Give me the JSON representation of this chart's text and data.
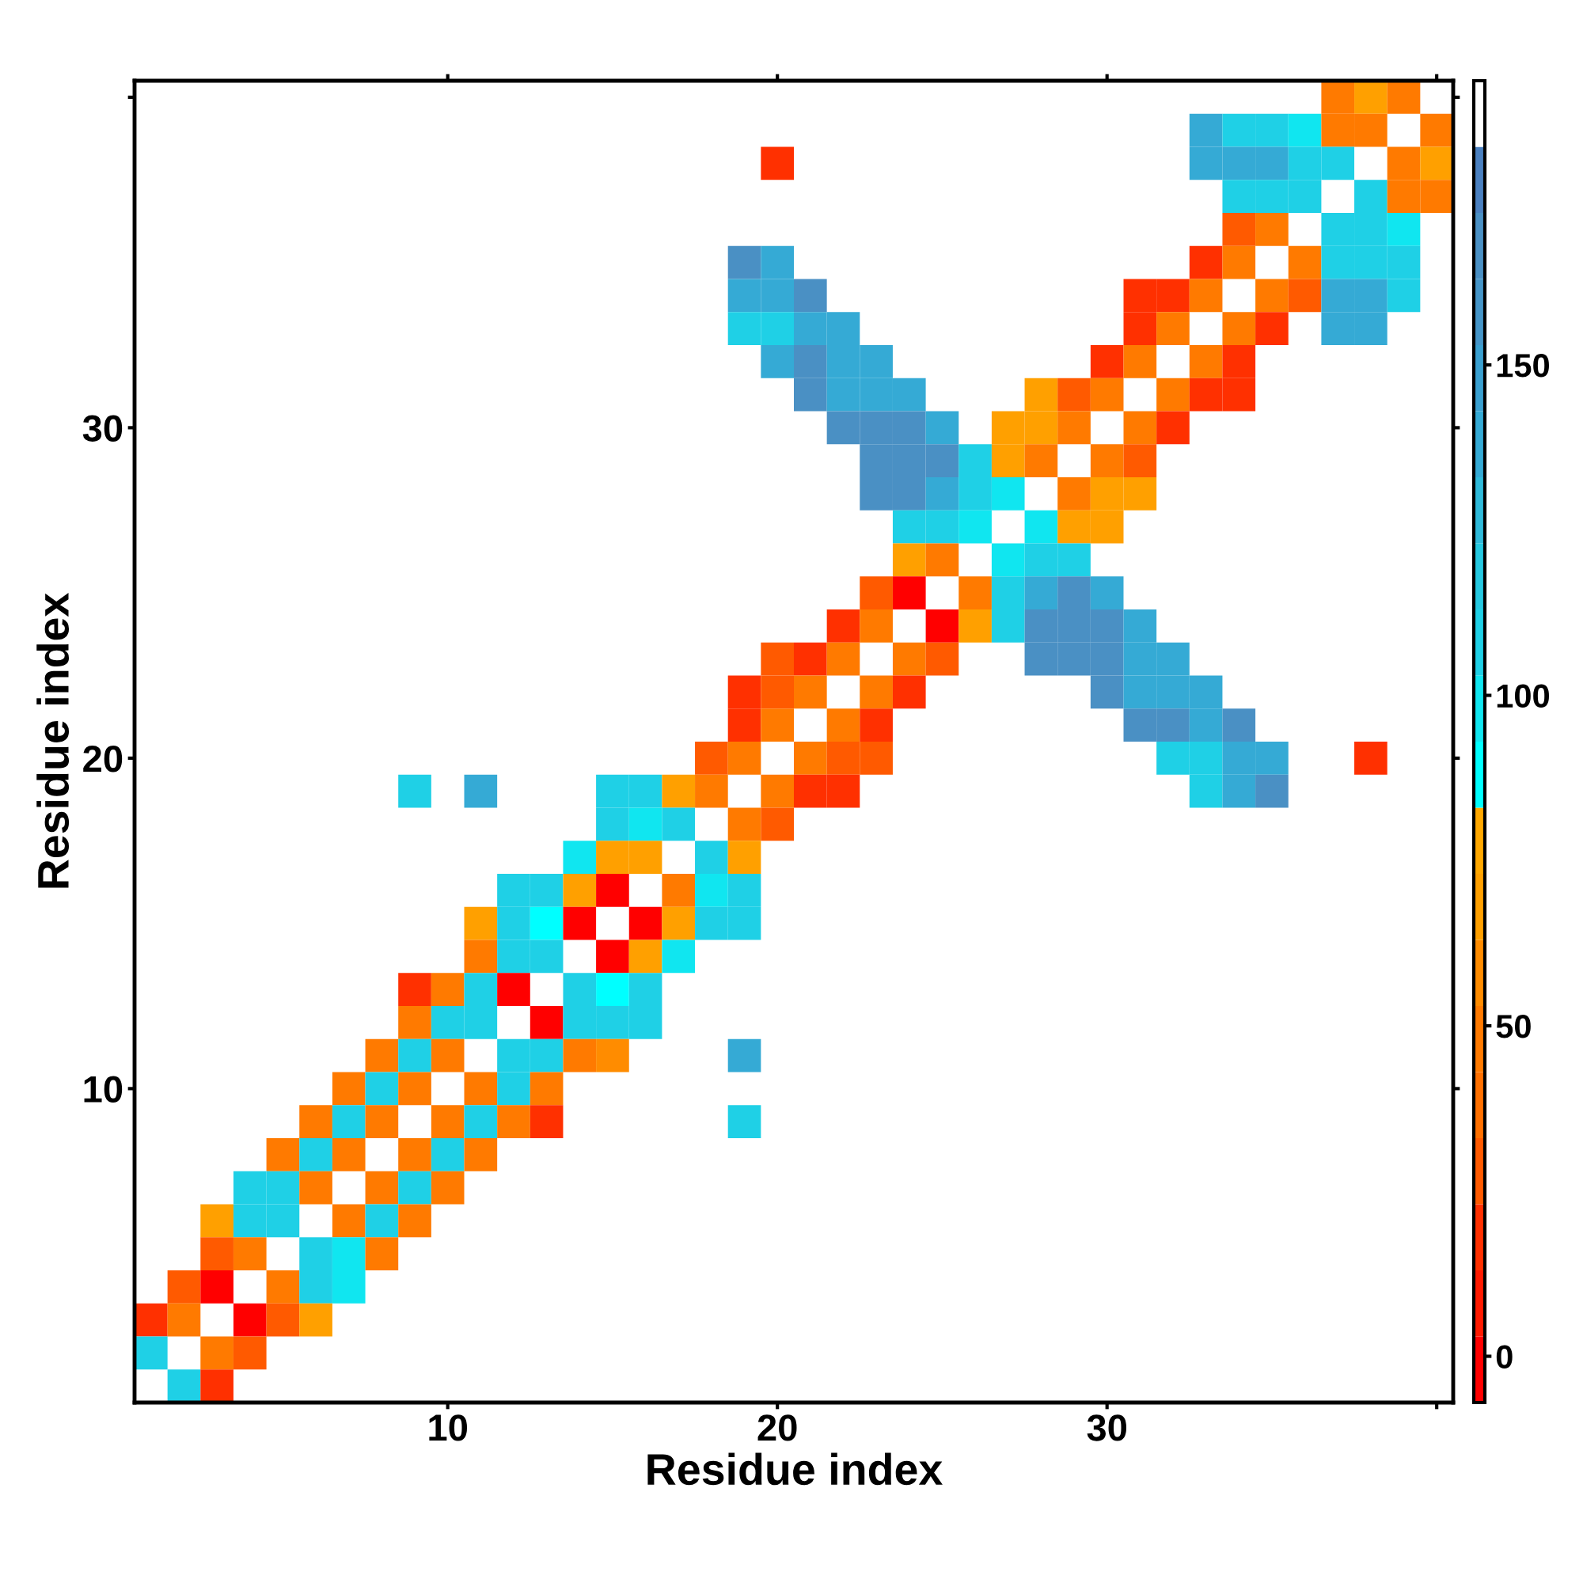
{
  "chart_data": {
    "type": "heatmap",
    "xlabel": "Residue index",
    "ylabel": "Residue index",
    "xlim": [
      0.5,
      40.5
    ],
    "ylim": [
      0.5,
      40.5
    ],
    "xticks": [
      10,
      20,
      30,
      {
        "value": 40,
        "label": null
      }
    ],
    "yticks": [
      10,
      20,
      30,
      {
        "value": 40,
        "label": null
      }
    ],
    "clim": [
      -7,
      193
    ],
    "cticks": [
      0,
      50,
      100,
      150
    ],
    "colors": [
      "#ff0000",
      "#ff1a00",
      "#ff3000",
      "#ff5a00",
      "#ff7000",
      "#ff7a00",
      "#ff8c00",
      "#ffa000",
      "#ffa800",
      "#00ffff",
      "#10e6f0",
      "#1fd0e6",
      "#25c8e0",
      "#2fbada",
      "#35aad5",
      "#3aa0d0",
      "#4595c8",
      "#4a90c4",
      "#4a80c0",
      "#ffffff"
    ],
    "cells": [
      [
        null,
        null,
        null,
        null,
        null,
        null,
        null,
        null,
        null,
        null,
        null,
        null,
        null,
        null,
        null,
        null,
        null,
        null,
        null,
        null,
        null,
        null,
        null,
        null,
        null,
        null,
        null,
        null,
        null,
        null,
        null,
        null,
        null,
        null,
        null,
        null,
        48,
        68,
        48,
        null
      ],
      [
        null,
        null,
        null,
        null,
        null,
        null,
        null,
        null,
        null,
        null,
        null,
        null,
        null,
        null,
        null,
        null,
        null,
        null,
        null,
        null,
        null,
        null,
        null,
        null,
        null,
        null,
        null,
        null,
        null,
        null,
        null,
        null,
        138,
        108,
        108,
        98,
        48,
        48,
        null,
        48
      ],
      [
        null,
        null,
        null,
        null,
        null,
        null,
        null,
        null,
        null,
        null,
        null,
        null,
        null,
        null,
        null,
        null,
        null,
        null,
        null,
        18,
        null,
        null,
        null,
        null,
        null,
        null,
        null,
        null,
        null,
        null,
        null,
        null,
        138,
        138,
        138,
        108,
        108,
        null,
        48,
        68
      ],
      [
        null,
        null,
        null,
        null,
        null,
        null,
        null,
        null,
        null,
        null,
        null,
        null,
        null,
        null,
        null,
        null,
        null,
        null,
        null,
        null,
        null,
        null,
        null,
        null,
        null,
        null,
        null,
        null,
        null,
        null,
        null,
        null,
        null,
        108,
        108,
        108,
        null,
        108,
        48,
        48
      ],
      [
        null,
        null,
        null,
        null,
        null,
        null,
        null,
        null,
        null,
        null,
        null,
        null,
        null,
        null,
        null,
        null,
        null,
        null,
        null,
        null,
        null,
        null,
        null,
        null,
        null,
        null,
        null,
        null,
        null,
        null,
        null,
        null,
        null,
        28,
        48,
        null,
        108,
        108,
        98,
        null
      ],
      [
        null,
        null,
        null,
        null,
        null,
        null,
        null,
        null,
        null,
        null,
        null,
        null,
        null,
        null,
        null,
        null,
        null,
        null,
        168,
        138,
        null,
        null,
        null,
        null,
        null,
        null,
        null,
        null,
        null,
        null,
        null,
        null,
        18,
        48,
        null,
        48,
        108,
        108,
        108,
        null
      ],
      [
        null,
        null,
        null,
        null,
        null,
        null,
        null,
        null,
        null,
        null,
        null,
        null,
        null,
        null,
        null,
        null,
        null,
        null,
        138,
        138,
        168,
        null,
        null,
        null,
        null,
        null,
        null,
        null,
        null,
        null,
        18,
        18,
        48,
        null,
        48,
        28,
        138,
        138,
        108,
        null
      ],
      [
        null,
        null,
        null,
        null,
        null,
        null,
        null,
        null,
        null,
        null,
        null,
        null,
        null,
        null,
        null,
        null,
        null,
        null,
        108,
        108,
        138,
        138,
        null,
        null,
        null,
        null,
        null,
        null,
        null,
        null,
        18,
        48,
        null,
        48,
        18,
        null,
        138,
        138,
        null,
        null
      ],
      [
        null,
        null,
        null,
        null,
        null,
        null,
        null,
        null,
        null,
        null,
        null,
        null,
        null,
        null,
        null,
        null,
        null,
        null,
        null,
        138,
        168,
        138,
        138,
        null,
        null,
        null,
        null,
        null,
        null,
        18,
        48,
        null,
        48,
        18,
        null,
        null,
        null,
        null,
        null,
        null
      ],
      [
        null,
        null,
        null,
        null,
        null,
        null,
        null,
        null,
        null,
        null,
        null,
        null,
        null,
        null,
        null,
        null,
        null,
        null,
        null,
        null,
        168,
        138,
        138,
        138,
        null,
        null,
        null,
        68,
        28,
        48,
        null,
        48,
        18,
        18,
        null,
        null,
        null,
        null,
        null,
        null
      ],
      [
        null,
        null,
        null,
        null,
        null,
        null,
        null,
        null,
        null,
        null,
        null,
        null,
        null,
        null,
        null,
        null,
        null,
        null,
        null,
        null,
        null,
        168,
        168,
        168,
        138,
        null,
        68,
        68,
        48,
        null,
        48,
        18,
        null,
        null,
        null,
        null,
        null,
        null,
        null,
        null
      ],
      [
        null,
        null,
        null,
        null,
        null,
        null,
        null,
        null,
        null,
        null,
        null,
        null,
        null,
        null,
        null,
        null,
        null,
        null,
        null,
        null,
        null,
        null,
        168,
        168,
        168,
        108,
        68,
        48,
        null,
        48,
        28,
        null,
        null,
        null,
        null,
        null,
        null,
        null,
        null,
        null
      ],
      [
        null,
        null,
        null,
        null,
        null,
        null,
        null,
        null,
        null,
        null,
        null,
        null,
        null,
        null,
        null,
        null,
        null,
        null,
        null,
        null,
        null,
        null,
        168,
        168,
        138,
        108,
        98,
        null,
        48,
        68,
        68,
        null,
        null,
        null,
        null,
        null,
        null,
        null,
        null,
        null
      ],
      [
        null,
        null,
        null,
        null,
        null,
        null,
        null,
        null,
        null,
        null,
        null,
        null,
        null,
        null,
        null,
        null,
        null,
        null,
        null,
        null,
        null,
        null,
        null,
        108,
        108,
        98,
        null,
        98,
        68,
        68,
        null,
        null,
        null,
        null,
        null,
        null,
        null,
        null,
        null,
        null
      ],
      [
        null,
        null,
        null,
        null,
        null,
        null,
        null,
        null,
        null,
        null,
        null,
        null,
        null,
        null,
        null,
        null,
        null,
        null,
        null,
        null,
        null,
        null,
        null,
        68,
        48,
        null,
        98,
        108,
        108,
        null,
        null,
        null,
        null,
        null,
        null,
        null,
        null,
        null,
        null,
        null
      ],
      [
        null,
        null,
        null,
        null,
        null,
        null,
        null,
        null,
        null,
        null,
        null,
        null,
        null,
        null,
        null,
        null,
        null,
        null,
        null,
        null,
        null,
        null,
        28,
        0,
        null,
        48,
        108,
        138,
        168,
        138,
        null,
        null,
        null,
        null,
        null,
        null,
        null,
        null,
        null,
        null
      ],
      [
        null,
        null,
        null,
        null,
        null,
        null,
        null,
        null,
        null,
        null,
        null,
        null,
        null,
        null,
        null,
        null,
        null,
        null,
        null,
        null,
        null,
        18,
        48,
        null,
        0,
        68,
        108,
        168,
        168,
        168,
        138,
        null,
        null,
        null,
        null,
        null,
        null,
        null,
        null,
        null
      ],
      [
        null,
        null,
        null,
        null,
        null,
        null,
        null,
        null,
        null,
        null,
        null,
        null,
        null,
        null,
        null,
        null,
        null,
        null,
        null,
        28,
        18,
        48,
        null,
        48,
        28,
        null,
        null,
        168,
        168,
        168,
        138,
        138,
        null,
        null,
        null,
        null,
        null,
        null,
        null,
        null
      ],
      [
        null,
        null,
        null,
        null,
        null,
        null,
        null,
        null,
        null,
        null,
        null,
        null,
        null,
        null,
        null,
        null,
        null,
        null,
        18,
        28,
        48,
        null,
        48,
        18,
        null,
        null,
        null,
        null,
        null,
        168,
        138,
        138,
        138,
        null,
        null,
        null,
        null,
        null,
        null,
        null
      ],
      [
        null,
        null,
        null,
        null,
        null,
        null,
        null,
        null,
        null,
        null,
        null,
        null,
        null,
        null,
        null,
        null,
        null,
        null,
        18,
        48,
        null,
        48,
        18,
        null,
        null,
        null,
        null,
        null,
        null,
        null,
        168,
        168,
        138,
        168,
        null,
        null,
        null,
        null,
        null,
        null
      ],
      [
        null,
        null,
        null,
        null,
        null,
        null,
        null,
        null,
        null,
        null,
        null,
        null,
        null,
        null,
        null,
        null,
        null,
        28,
        48,
        null,
        48,
        28,
        28,
        null,
        null,
        null,
        null,
        null,
        null,
        null,
        null,
        108,
        108,
        138,
        138,
        null,
        null,
        18,
        null,
        null
      ],
      [
        null,
        null,
        null,
        null,
        null,
        null,
        null,
        null,
        108,
        null,
        138,
        null,
        null,
        null,
        108,
        108,
        68,
        48,
        null,
        48,
        18,
        18,
        null,
        null,
        null,
        null,
        null,
        null,
        null,
        null,
        null,
        null,
        108,
        138,
        168,
        null,
        null,
        null,
        null,
        null
      ],
      [
        null,
        null,
        null,
        null,
        null,
        null,
        null,
        null,
        null,
        null,
        null,
        null,
        null,
        null,
        108,
        98,
        108,
        null,
        48,
        28,
        null,
        null,
        null,
        null,
        null,
        null,
        null,
        null,
        null,
        null,
        null,
        null,
        null,
        null,
        null,
        null,
        null,
        null,
        null,
        null
      ],
      [
        null,
        null,
        null,
        null,
        null,
        null,
        null,
        null,
        null,
        null,
        null,
        null,
        null,
        98,
        68,
        68,
        null,
        108,
        68,
        null,
        null,
        null,
        null,
        null,
        null,
        null,
        null,
        null,
        null,
        null,
        null,
        null,
        null,
        null,
        null,
        null,
        null,
        null,
        null,
        null
      ],
      [
        null,
        null,
        null,
        null,
        null,
        null,
        null,
        null,
        null,
        null,
        null,
        108,
        108,
        68,
        0,
        null,
        48,
        98,
        108,
        null,
        null,
        null,
        null,
        null,
        null,
        null,
        null,
        null,
        null,
        null,
        null,
        null,
        null,
        null,
        null,
        null,
        null,
        null,
        null,
        null
      ],
      [
        null,
        null,
        null,
        null,
        null,
        null,
        null,
        null,
        null,
        null,
        68,
        108,
        88,
        0,
        null,
        0,
        68,
        108,
        108,
        null,
        null,
        null,
        null,
        null,
        null,
        null,
        null,
        null,
        null,
        null,
        null,
        null,
        null,
        null,
        null,
        null,
        null,
        null,
        null,
        null
      ],
      [
        null,
        null,
        null,
        null,
        null,
        null,
        null,
        null,
        null,
        null,
        48,
        108,
        108,
        null,
        0,
        68,
        98,
        null,
        null,
        null,
        null,
        null,
        null,
        null,
        null,
        null,
        null,
        null,
        null,
        null,
        null,
        null,
        null,
        null,
        null,
        null,
        null,
        null,
        null,
        null
      ],
      [
        null,
        null,
        null,
        null,
        null,
        null,
        null,
        null,
        18,
        48,
        108,
        0,
        null,
        108,
        88,
        108,
        null,
        null,
        null,
        null,
        null,
        null,
        null,
        null,
        null,
        null,
        null,
        null,
        null,
        null,
        null,
        null,
        null,
        null,
        null,
        null,
        null,
        null,
        null,
        null
      ],
      [
        null,
        null,
        null,
        null,
        null,
        null,
        null,
        null,
        48,
        108,
        108,
        null,
        0,
        108,
        108,
        108,
        null,
        null,
        null,
        null,
        null,
        null,
        null,
        null,
        null,
        null,
        null,
        null,
        null,
        null,
        null,
        null,
        null,
        null,
        null,
        null,
        null,
        null,
        null,
        null
      ],
      [
        null,
        null,
        null,
        null,
        null,
        null,
        null,
        48,
        108,
        48,
        null,
        108,
        108,
        48,
        58,
        null,
        null,
        null,
        138,
        null,
        null,
        null,
        null,
        null,
        null,
        null,
        null,
        null,
        null,
        null,
        null,
        null,
        null,
        null,
        null,
        null,
        null,
        null,
        null,
        null
      ],
      [
        null,
        null,
        null,
        null,
        null,
        null,
        48,
        108,
        48,
        null,
        48,
        108,
        48,
        null,
        null,
        null,
        null,
        null,
        null,
        null,
        null,
        null,
        null,
        null,
        null,
        null,
        null,
        null,
        null,
        null,
        null,
        null,
        null,
        null,
        null,
        null,
        null,
        null,
        null,
        null
      ],
      [
        null,
        null,
        null,
        null,
        null,
        48,
        108,
        48,
        null,
        48,
        108,
        48,
        18,
        null,
        null,
        null,
        null,
        null,
        108,
        null,
        null,
        null,
        null,
        null,
        null,
        null,
        null,
        null,
        null,
        null,
        null,
        null,
        null,
        null,
        null,
        null,
        null,
        null,
        null,
        null
      ],
      [
        null,
        null,
        null,
        null,
        48,
        108,
        48,
        null,
        48,
        108,
        48,
        null,
        null,
        null,
        null,
        null,
        null,
        null,
        null,
        null,
        null,
        null,
        null,
        null,
        null,
        null,
        null,
        null,
        null,
        null,
        null,
        null,
        null,
        null,
        null,
        null,
        null,
        null,
        null,
        null
      ],
      [
        null,
        null,
        null,
        108,
        108,
        48,
        null,
        48,
        108,
        48,
        null,
        null,
        null,
        null,
        null,
        null,
        null,
        null,
        null,
        null,
        null,
        null,
        null,
        null,
        null,
        null,
        null,
        null,
        null,
        null,
        null,
        null,
        null,
        null,
        null,
        null,
        null,
        null,
        null,
        null
      ],
      [
        null,
        null,
        68,
        108,
        108,
        null,
        48,
        108,
        48,
        null,
        null,
        null,
        null,
        null,
        null,
        null,
        null,
        null,
        null,
        null,
        null,
        null,
        null,
        null,
        null,
        null,
        null,
        null,
        null,
        null,
        null,
        null,
        null,
        null,
        null,
        null,
        null,
        null,
        null,
        null
      ],
      [
        null,
        null,
        28,
        48,
        null,
        108,
        98,
        48,
        null,
        null,
        null,
        null,
        null,
        null,
        null,
        null,
        null,
        null,
        null,
        null,
        null,
        null,
        null,
        null,
        null,
        null,
        null,
        null,
        null,
        null,
        null,
        null,
        null,
        null,
        null,
        null,
        null,
        null,
        null,
        null
      ],
      [
        null,
        28,
        0,
        null,
        48,
        108,
        98,
        null,
        null,
        null,
        null,
        null,
        null,
        null,
        null,
        null,
        null,
        null,
        null,
        null,
        null,
        null,
        null,
        null,
        null,
        null,
        null,
        null,
        null,
        null,
        null,
        null,
        null,
        null,
        null,
        null,
        null,
        null,
        null,
        null
      ],
      [
        18,
        48,
        null,
        0,
        28,
        68,
        null,
        null,
        null,
        null,
        null,
        null,
        null,
        null,
        null,
        null,
        null,
        null,
        null,
        null,
        null,
        null,
        null,
        null,
        null,
        null,
        null,
        null,
        null,
        null,
        null,
        null,
        null,
        null,
        null,
        null,
        null,
        null,
        null,
        null
      ],
      [
        108,
        null,
        48,
        28,
        null,
        null,
        null,
        null,
        null,
        null,
        null,
        null,
        null,
        null,
        null,
        null,
        null,
        null,
        null,
        null,
        null,
        null,
        null,
        null,
        null,
        null,
        null,
        null,
        null,
        null,
        null,
        null,
        null,
        null,
        null,
        null,
        null,
        null,
        null,
        null
      ],
      [
        null,
        108,
        18,
        null,
        null,
        null,
        null,
        null,
        null,
        null,
        null,
        null,
        null,
        null,
        null,
        null,
        null,
        null,
        null,
        null,
        null,
        null,
        null,
        null,
        null,
        null,
        null,
        null,
        null,
        null,
        null,
        null,
        null,
        null,
        null,
        null,
        null,
        null,
        null,
        null
      ]
    ]
  }
}
